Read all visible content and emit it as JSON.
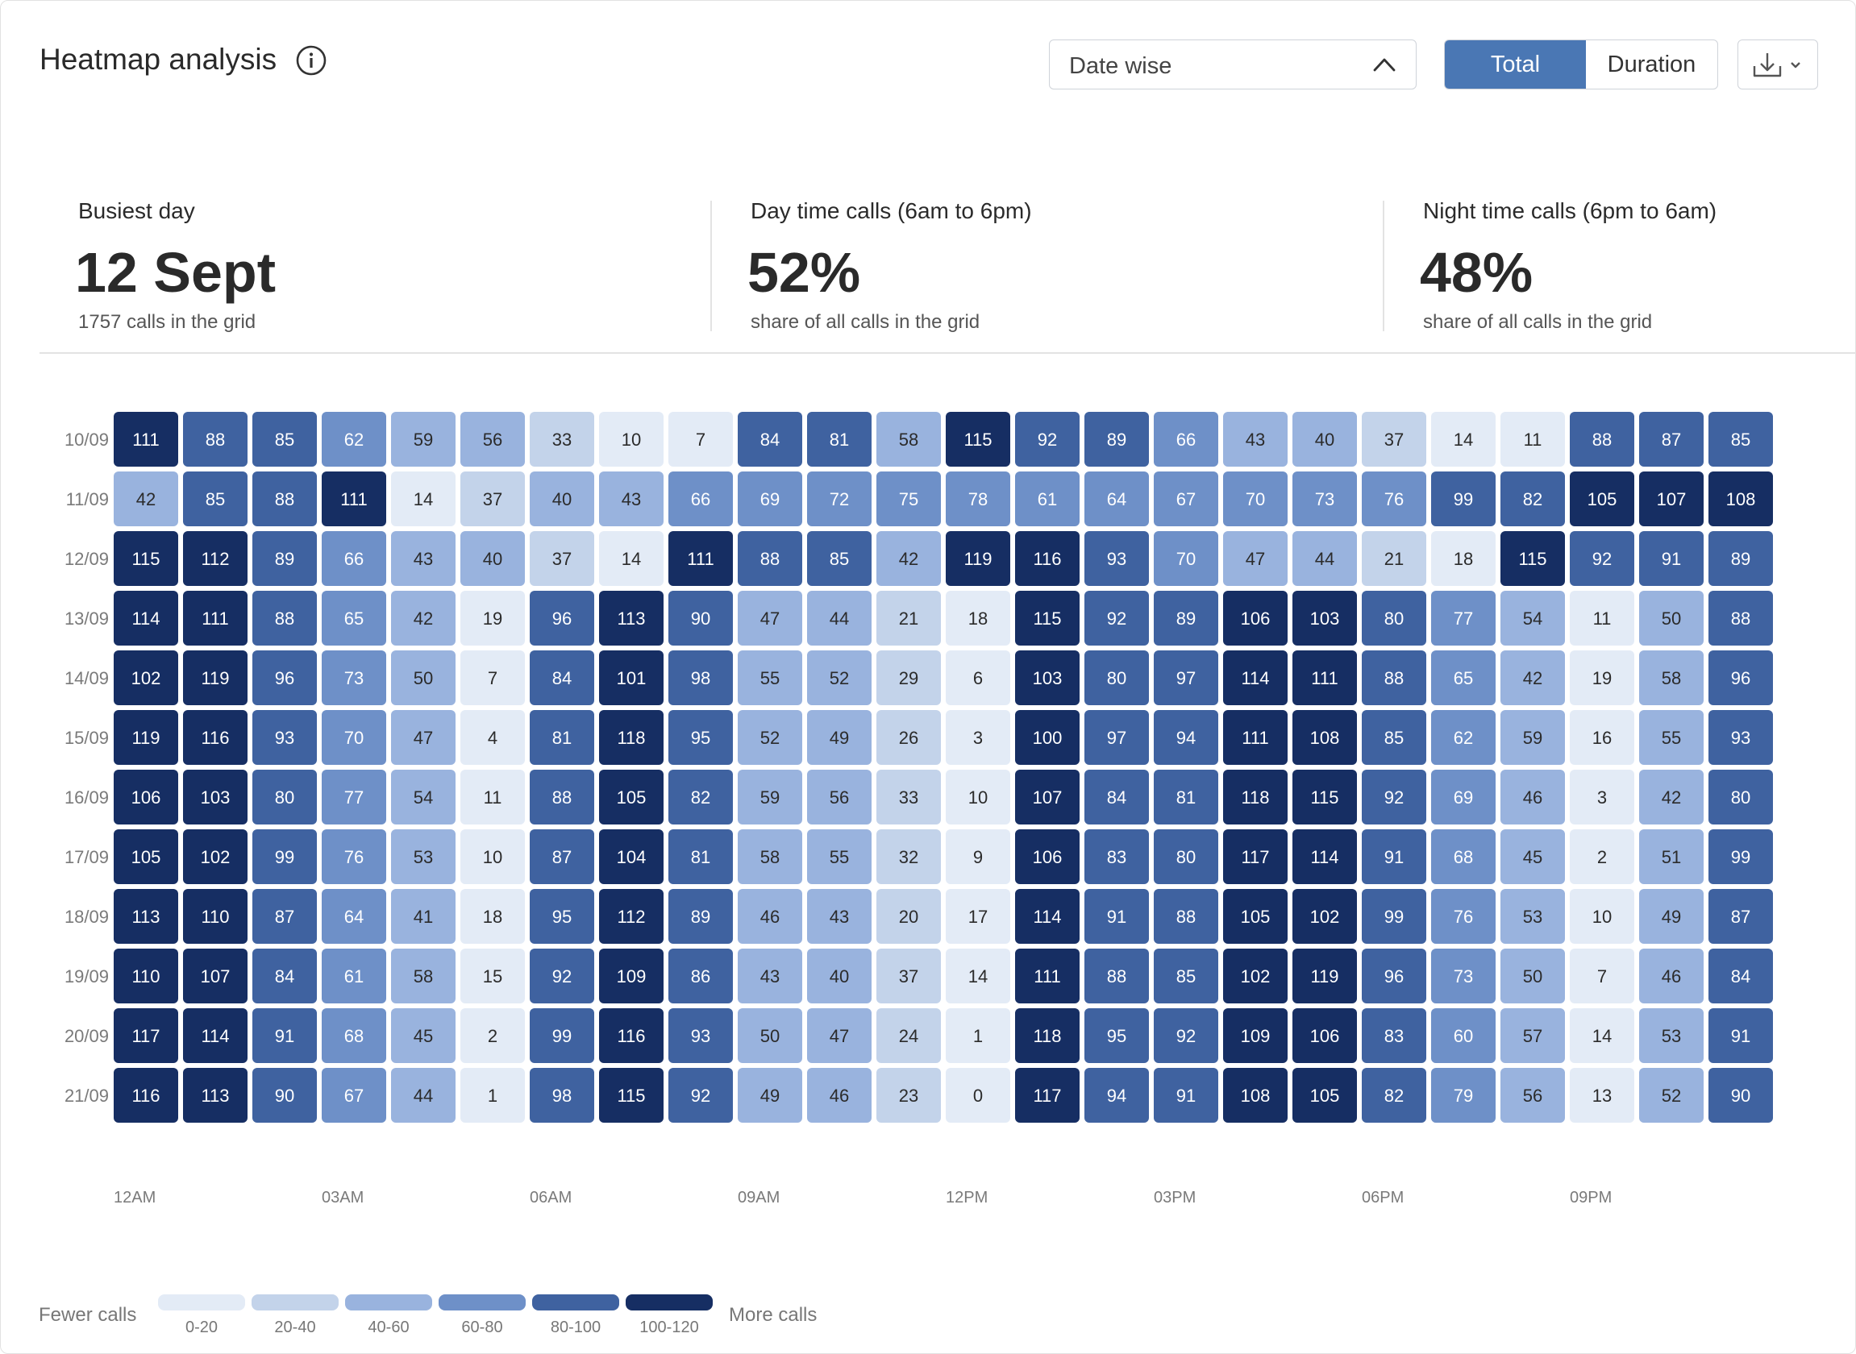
{
  "header": {
    "title": "Heatmap analysis",
    "dropdown_value": "Date wise",
    "toggle_total": "Total",
    "toggle_duration": "Duration"
  },
  "stats": [
    {
      "label": "Busiest day",
      "value": "12 Sept",
      "sub": "1757 calls in the grid"
    },
    {
      "label": "Day time calls (6am to 6pm)",
      "value": "52%",
      "sub": "share of all calls in the grid"
    },
    {
      "label": "Night time calls (6pm to 6am)",
      "value": "48%",
      "sub": "share of all calls in the grid"
    }
  ],
  "legend": {
    "fewer": "Fewer calls",
    "more": "More calls",
    "buckets": [
      {
        "label": "0-20",
        "color": "#e3ebf6"
      },
      {
        "label": "20-40",
        "color": "#c3d3ea"
      },
      {
        "label": "40-60",
        "color": "#99b3de"
      },
      {
        "label": "60-80",
        "color": "#6e90c8"
      },
      {
        "label": "80-100",
        "color": "#3f62a0"
      },
      {
        "label": "100-120",
        "color": "#162e63"
      }
    ]
  },
  "chart_data": {
    "type": "heatmap",
    "x_tick_labels": [
      "12AM",
      "03AM",
      "06AM",
      "09AM",
      "12PM",
      "03PM",
      "06PM",
      "09PM"
    ],
    "columns": 24,
    "rows": [
      "10/09",
      "11/09",
      "12/09",
      "13/09",
      "14/09",
      "15/09",
      "16/09",
      "17/09",
      "18/09",
      "19/09",
      "20/09",
      "21/09"
    ],
    "values": [
      [
        111,
        88,
        85,
        62,
        59,
        56,
        33,
        10,
        7,
        84,
        81,
        58,
        115,
        92,
        89,
        66,
        43,
        40,
        37,
        14,
        11,
        88,
        87,
        85
      ],
      [
        42,
        85,
        88,
        111,
        14,
        37,
        40,
        43,
        66,
        69,
        72,
        75,
        78,
        61,
        64,
        67,
        70,
        73,
        76,
        99,
        82,
        105,
        107,
        108
      ],
      [
        115,
        112,
        89,
        66,
        43,
        40,
        37,
        14,
        111,
        88,
        85,
        42,
        119,
        116,
        93,
        70,
        47,
        44,
        21,
        18,
        115,
        92,
        91,
        89
      ],
      [
        114,
        111,
        88,
        65,
        42,
        19,
        96,
        113,
        90,
        47,
        44,
        21,
        18,
        115,
        92,
        89,
        106,
        103,
        80,
        77,
        54,
        11,
        50,
        88
      ],
      [
        102,
        119,
        96,
        73,
        50,
        7,
        84,
        101,
        98,
        55,
        52,
        29,
        6,
        103,
        80,
        97,
        114,
        111,
        88,
        65,
        42,
        19,
        58,
        96
      ],
      [
        119,
        116,
        93,
        70,
        47,
        4,
        81,
        118,
        95,
        52,
        49,
        26,
        3,
        100,
        97,
        94,
        111,
        108,
        85,
        62,
        59,
        16,
        55,
        93
      ],
      [
        106,
        103,
        80,
        77,
        54,
        11,
        88,
        105,
        82,
        59,
        56,
        33,
        10,
        107,
        84,
        81,
        118,
        115,
        92,
        69,
        46,
        3,
        42,
        80
      ],
      [
        105,
        102,
        99,
        76,
        53,
        10,
        87,
        104,
        81,
        58,
        55,
        32,
        9,
        106,
        83,
        80,
        117,
        114,
        91,
        68,
        45,
        2,
        51,
        99
      ],
      [
        113,
        110,
        87,
        64,
        41,
        18,
        95,
        112,
        89,
        46,
        43,
        20,
        17,
        114,
        91,
        88,
        105,
        102,
        99,
        76,
        53,
        10,
        49,
        87
      ],
      [
        110,
        107,
        84,
        61,
        58,
        15,
        92,
        109,
        86,
        43,
        40,
        37,
        14,
        111,
        88,
        85,
        102,
        119,
        96,
        73,
        50,
        7,
        46,
        84
      ],
      [
        117,
        114,
        91,
        68,
        45,
        2,
        99,
        116,
        93,
        50,
        47,
        24,
        1,
        118,
        95,
        92,
        109,
        106,
        83,
        60,
        57,
        14,
        53,
        91
      ],
      [
        116,
        113,
        90,
        67,
        44,
        1,
        98,
        115,
        92,
        49,
        46,
        23,
        0,
        117,
        94,
        91,
        108,
        105,
        82,
        79,
        56,
        13,
        52,
        90
      ]
    ],
    "range": [
      0,
      120
    ]
  }
}
